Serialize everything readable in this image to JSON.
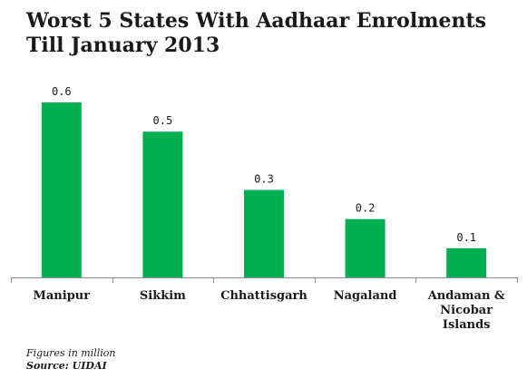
{
  "chart_data": {
    "type": "bar",
    "title_lines": [
      "Worst 5 States With Aadhaar Enrolments",
      "Till January 2013"
    ],
    "categories": [
      "Manipur",
      "Sikkim",
      "Chhattisgarh",
      "Nagaland",
      "Andaman & Nicobar Islands"
    ],
    "category_lines": [
      [
        "Manipur"
      ],
      [
        "Sikkim"
      ],
      [
        "Chhattisgarh"
      ],
      [
        "Nagaland"
      ],
      [
        "Andaman &",
        "Nicobar",
        "Islands"
      ]
    ],
    "values": [
      0.6,
      0.5,
      0.3,
      0.2,
      0.1
    ],
    "data_labels": [
      "0.6",
      "0.5",
      "0.3",
      "0.2",
      "0.1"
    ],
    "xlabel": "",
    "ylabel": "",
    "ylim": [
      0,
      0.6
    ],
    "grid": false,
    "legend": "none",
    "bar_color": "#00b050"
  },
  "footnote": {
    "units": "Figures in million",
    "source": "Source: UIDAI"
  }
}
